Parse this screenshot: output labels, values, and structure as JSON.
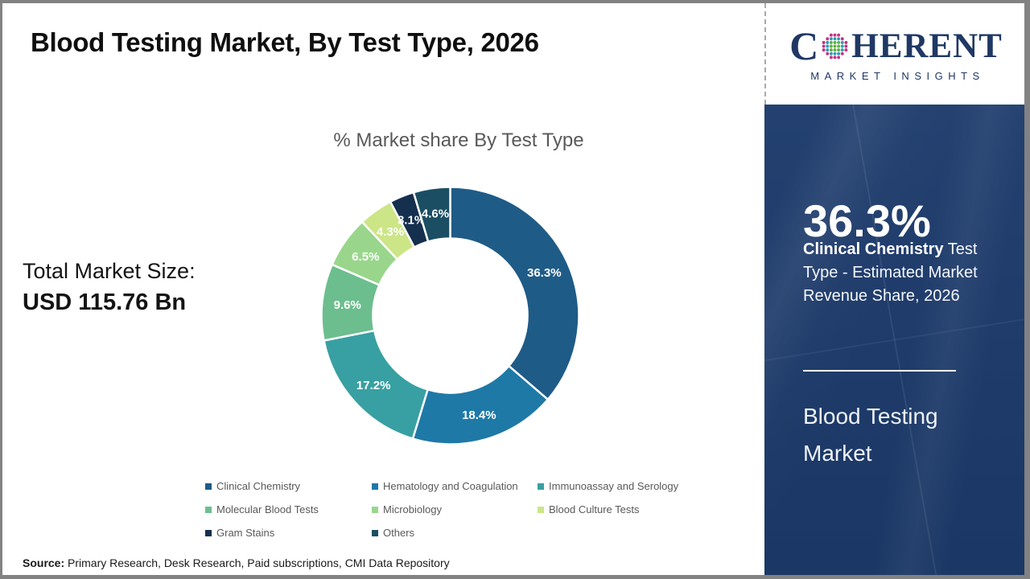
{
  "title": "Blood Testing Market, By Test Type, 2026",
  "total_market": {
    "label": "Total Market Size:",
    "value": "USD 115.76 Bn"
  },
  "chart_data": {
    "type": "pie",
    "title": "% Market share By Test Type",
    "categories": [
      "Clinical Chemistry",
      "Hematology and Coagulation",
      "Immunoassay and Serology",
      "Molecular Blood Tests",
      "Microbiology",
      "Blood Culture Tests",
      "Gram Stains",
      "Others"
    ],
    "values": [
      36.3,
      18.4,
      17.2,
      9.6,
      6.5,
      4.3,
      3.1,
      4.6
    ],
    "unit": "%",
    "colors": [
      "#1F5B87",
      "#1E79A7",
      "#38A0A2",
      "#6CBE8E",
      "#99D68C",
      "#CCE586",
      "#152F4E",
      "#1B4E63"
    ],
    "donut": true,
    "inner_radius_ratio": 0.6,
    "start_angle_deg": 0,
    "direction": "clockwise",
    "label_format": "value_percent",
    "legend_position": "bottom"
  },
  "sidebar": {
    "highlight_value": "36.3%",
    "highlight_bold": "Clinical Chemistry",
    "highlight_rest": " Test Type - Estimated Market Revenue Share, 2026",
    "panel_title": "Blood Testing Market",
    "bg_color": "#1C3A6B"
  },
  "logo": {
    "brand_prefix": "C",
    "brand_suffix": "HERENT",
    "tagline": "MARKET INSIGHTS",
    "color": "#1F3864",
    "globe_colors": {
      "outer": "#C13483",
      "mid": "#2E9DB4",
      "inner": "#5FB045"
    }
  },
  "source": {
    "label": "Source:",
    "text": " Primary Research, Desk Research, Paid subscriptions, CMI Data Repository"
  }
}
